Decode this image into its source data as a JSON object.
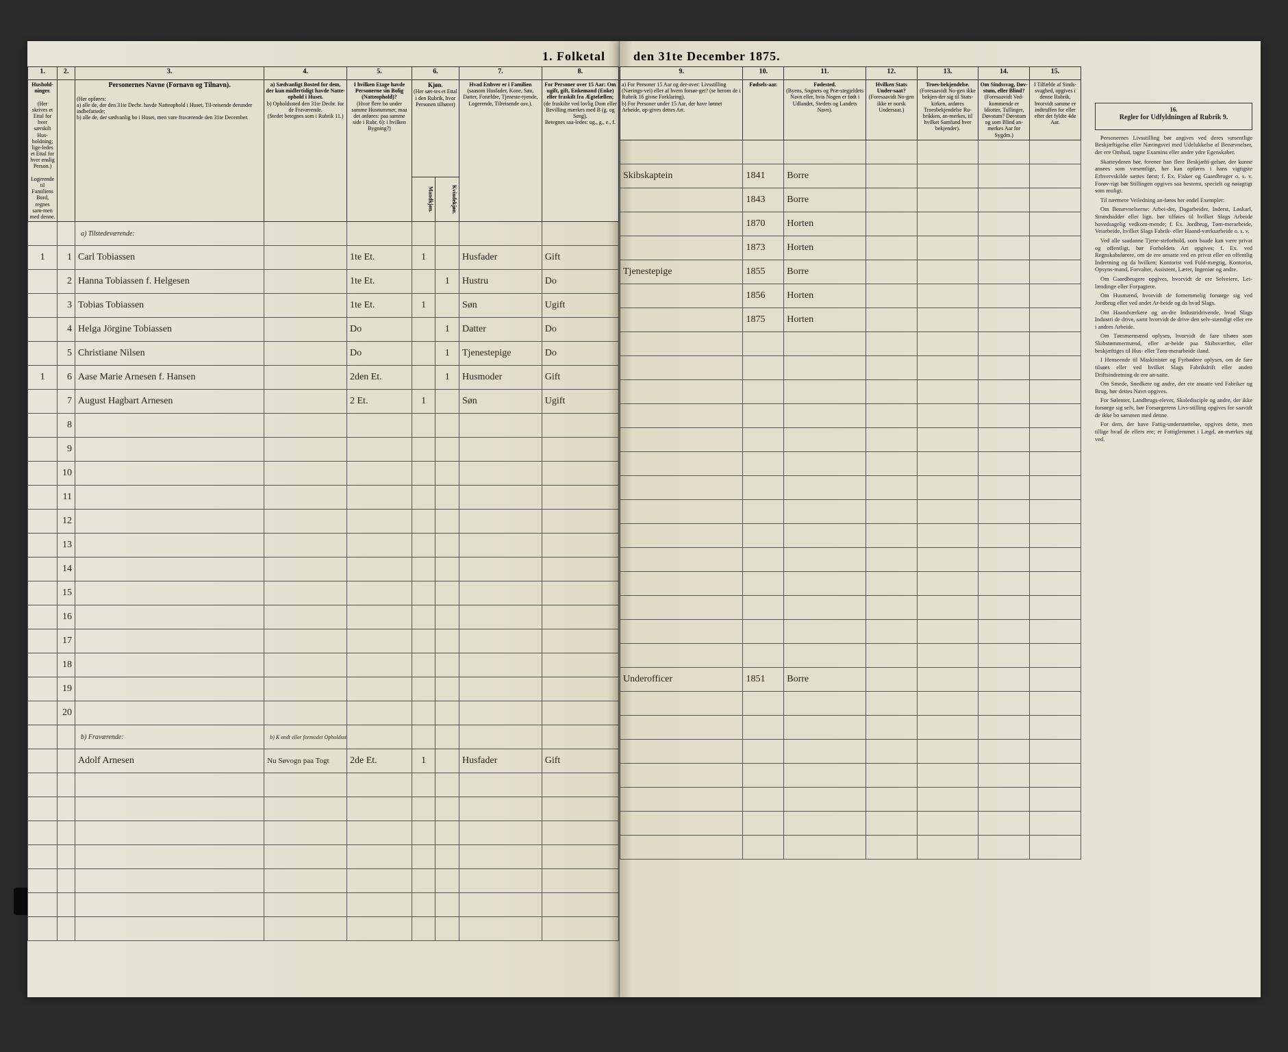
{
  "title_left": "1. Folketal",
  "title_right": "den 31te December 1875.",
  "col_numbers_left": [
    "1.",
    "2.",
    "3.",
    "4.",
    "5.",
    "6.",
    "7.",
    "8."
  ],
  "col_numbers_right": [
    "9.",
    "10.",
    "11.",
    "12.",
    "13.",
    "14.",
    "15.",
    "16."
  ],
  "headers_left": {
    "c1": "Hushold-ninger.",
    "c1b": "(Her skrives et Ettal for hver særskilt Hus-holdning; lige-ledes et Ettal for hver enslig Person.)",
    "c1c": "Logerende til Familiens Bord, regnes sam-men med denne.",
    "c2": "",
    "c3": "Personernes Navne (Fornavn og Tilnavn).",
    "c3a": "(Her opføres:",
    "c3b": "a) alle de, der den 31te Decbr. havde Natteophold i Huset, Til-reisende derunder indbefattede;",
    "c3c": "b) alle de, der sædvanlig bo i Huset, men vare fraværende den 31te December.",
    "c4": "a) Sædvanligt Bosted for dem, der kun midlertidigt havde Natte-ophold i Huset.",
    "c4b": "b) Opholdssted den 31te Decbr. for de Fraværende.",
    "c4c": "(Stedet betegnes som i Rubrik 11.)",
    "c5": "I hvilken Etage havde Personerne sin Bolig (Natteophold)?",
    "c5b": "(Hvor flere bo under samme Husnummer, maa det anføres: paa samme side i Rubr. 6): i hvilken Bygning?)",
    "c6": "(Her sæt-tes et Ettal i den Rubrik, hvor Personen tilhører)",
    "c6a": "Mandkjøn.",
    "c6b": "Kvindekjøn.",
    "c7": "Hvad Enhver er i Familien",
    "c7b": "(saasom Husfader, Kone, Søn, Datter, Forældre, Tjeneste-tyende, Logerende, Tilreisende osv.).",
    "c8": "For Personer over 15 Aar: Om ugift, gift, Enkemand (Enke) eller fraskilt fra Ægtefællen;",
    "c8b": "(de fraskilte ved lovlig Dom eller Bevilling mærkes med B (g. og Seng).",
    "c8c": "Betegnes saa-ledes: ug., g., e., f."
  },
  "headers_right": {
    "c9a": "a) For Personer 15 Aar og der-over: Livsstilling (Nærings-vei) eller af hvem forsør-get? (se herom de i Rubrik 16 givne Forklaring).",
    "c9b": "b) For Personer under 15 Aar, der have lønnet Arbeide, op-gives dettes Art.",
    "c10": "Fødsels-aar.",
    "c11": "Fødested.",
    "c11b": "(Byens, Sognets og Præ-stegjeldets Navn eller, hvis Nogen er født i Udlandet, Stedets og Landets Navn).",
    "c12": "Hvilken Stats Under-saat?",
    "c12b": "(Foresaavidt No-gen ikke er norsk Undersaat.)",
    "c13": "Troes-bekjendelse.",
    "c13b": "(Foresaavidt No-gen ikke bekjen-der sig til Stats-kirken, anføres Troesbekjendelse Ru-brikken, an-merkes, til hvilket Samfund hver bekjender).",
    "c14": "Om Sindssvag, Døv-stum, eller Blind?",
    "c14b": "(Foresaavidt Ved-kommende er Idiotter, Tullinger, Døvstum? Døvstum og som Blind an-merkes Aar for Sygdm.)",
    "c15": "I Tilfælde af Sinds-svaghed, opgives i denne Rubrik, hvorvidt samme er indtruffen for eller efter det fyldte 4de Aar.",
    "c16": "Regler for Udfyldningen af Rubrik 9."
  },
  "section_a": "a) Tilstedeværende:",
  "section_b": "b) Fraværende:",
  "section_b_col4": "b) K endt eller formodet Opholdssted:",
  "rows": [
    {
      "n": "1",
      "hh": "1",
      "name": "Carl Tobiassen",
      "c4": "",
      "c5": "1te Et.",
      "c6m": "1",
      "c6k": "",
      "c7": "Husfader",
      "c8": "Gift",
      "c9": "Skibskaptein",
      "c10": "1841",
      "c11": "Borre"
    },
    {
      "n": "2",
      "hh": "",
      "name": "Hanna Tobiassen f. Helgesen",
      "c4": "",
      "c5": "1te Et.",
      "c6m": "",
      "c6k": "1",
      "c7": "Hustru",
      "c8": "Do",
      "c9": "",
      "c10": "1843",
      "c11": "Borre"
    },
    {
      "n": "3",
      "hh": "",
      "name": "Tobias Tobiassen",
      "c4": "",
      "c5": "1te Et.",
      "c6m": "1",
      "c6k": "",
      "c7": "Søn",
      "c8": "Ugift",
      "c9": "",
      "c10": "1870",
      "c11": "Horten"
    },
    {
      "n": "4",
      "hh": "",
      "name": "Helga Jörgine Tobiassen",
      "c4": "",
      "c5": "Do",
      "c6m": "",
      "c6k": "1",
      "c7": "Datter",
      "c8": "Do",
      "c9": "",
      "c10": "1873",
      "c11": "Horten"
    },
    {
      "n": "5",
      "hh": "",
      "name": "Christiane Nilsen",
      "c4": "",
      "c5": "Do",
      "c6m": "",
      "c6k": "1",
      "c7": "Tjenestepige",
      "c8": "Do",
      "c9": "Tjenestepige",
      "c10": "1855",
      "c11": "Borre"
    },
    {
      "n": "6",
      "hh": "1",
      "name": "Aase Marie Arnesen f. Hansen",
      "c4": "",
      "c5": "2den Et.",
      "c6m": "",
      "c6k": "1",
      "c7": "Husmoder",
      "c8": "Gift",
      "c9": "",
      "c10": "1856",
      "c11": "Horten"
    },
    {
      "n": "7",
      "hh": "",
      "name": "August Hagbart Arnesen",
      "c4": "",
      "c5": "2 Et.",
      "c6m": "1",
      "c6k": "",
      "c7": "Søn",
      "c8": "Ugift",
      "c9": "",
      "c10": "1875",
      "c11": "Horten"
    }
  ],
  "absent_row": {
    "n": "",
    "hh": "",
    "name": "Adolf Arnesen",
    "c4": "Nu Søvogn paa Togt",
    "c5": "2de Et.",
    "c6m": "1",
    "c6k": "",
    "c7": "Husfader",
    "c8": "Gift",
    "c9": "Underofficer",
    "c10": "1851",
    "c11": "Borre"
  },
  "rules_title": "Regler for Udfyldningen af Rubrik 9.",
  "rules_body": [
    "Personernes Livsstilling bør angives ved deres væsentlige Beskjæftigelse eller Næringsvei med Udelukkelse af Benævnelser, der ere Ombud, tagne Examina eller andre ydre Egenskaber.",
    "Skatteyderen bør, forener han flere Beskjæfti-gelser, der kunne ansees som væsentlige, her kan opføres i hans vigtigste Erhvervskilde sættes først; f. Ex. Fisker og Gaardbruger o. s. v. Forøv-rigt bør Stillingen opgives saa bestemt, specielt og nøiagtigt som muligt.",
    "Til nærmere Veiledning an-føres her endel Exempler:",
    "Om Benævnelserne: Arbei-der, Dagarbeider, Inderst, Løskarl, Strandsidder eller lign. bør tilføies til hvilket Slags Arbeide hovedsagelig vedkom-mende; f. Ex. Jordbrug, Tøm-merarbeide, Veiarbeide, hvilket Slags Fabrik- eller Haand-værksarbeide o. s. v.",
    "Ved alle saadanne Tjene-steforhold, som baade kan være privat og offentligt, bør Forholdets Art opgives; f. Ex. ved Regnskabsførere, om de ere ansatte ved en privat eller en offentlig Indretning og da hvilken; Kontorist ved Fuld-mægtig, Kontorist, Opsyns-mand, Forvalter, Assistent, Lærer, Ingeniør og andre.",
    "Om Gaardbrugere opgives, hvorvidt de ere Selveiere, Lei-lændinge eller Forpagtere.",
    "Om Husmænd, hvorvidt de fornemmelig forsørge sig ved Jordbrug eller ved andet Ar-beide og da hvad Slags.",
    "Om Haandværkere og an-dre Industridrivende, hvad Slags Industri de drive, samt hvorvidt de drive den selv-stændigt eller ere i andres Arbeide.",
    "Om Tømmermænd oplyses, hvorvidt de fare tilsøes som Skibstømmermænd, eller ar-beide paa Skibsværfter, eller beskjæftiges til Hus- eller Tøm-merarbeide iland.",
    "I Henseende til Maskinister og Fyrbødere oplyses, om de fare tilsøes eller ved hvilket Slags Fabrikdrift eller anden Driftsindretning de ere an-satte.",
    "Om Smede, Snedkere og andre, der ere ansatte ved Fabriker og Brug, bør dettes Navn opgives.",
    "For Sølenter, Landbrugs-elever, Skoledisciple og andre, der ikke forsørge sig selv, bør Forsørgerens Livs-stilling opgives for saavidt de ikke bo sammen med denne.",
    "For dem, der have Fattig-understøttelse, opgives dette, men tillige hvad de ellers ere; er Fattiglemmet i Lægd, an-mærkes sig ved."
  ]
}
